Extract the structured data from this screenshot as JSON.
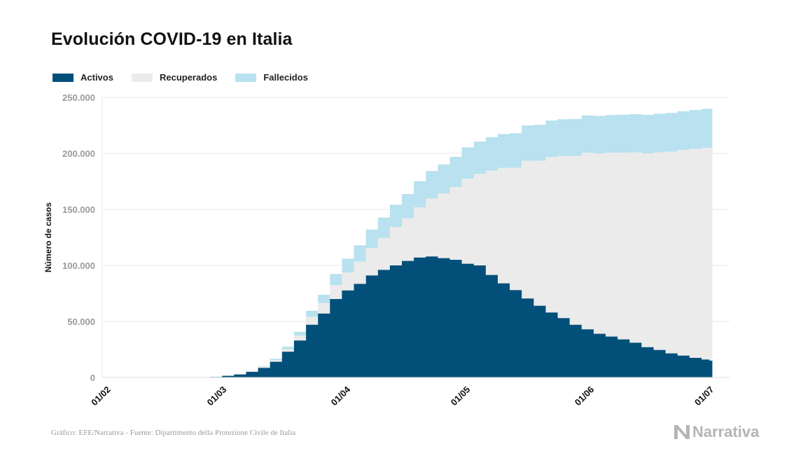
{
  "title": "Evolución COVID-19 en Italia",
  "colors": {
    "activos": "#02507a",
    "recuperados": "#ebebeb",
    "fallecidos": "#b9e1ef",
    "grid": "#e8e8e8",
    "tick_text": "#9a9a9a",
    "axis_text": "#111111"
  },
  "legend": [
    {
      "label": "Activos",
      "color": "#02507a"
    },
    {
      "label": "Recuperados",
      "color": "#ebebeb"
    },
    {
      "label": "Fallecidos",
      "color": "#b9e1ef"
    }
  ],
  "footer": {
    "source": "Gráfico: EFE/Narrativa - Fuente: Dipartimento della Protezione Civile de Italia",
    "brand": "Narrativa"
  },
  "chart_data": {
    "type": "area",
    "stacked": true,
    "title": "Evolución COVID-19 en Italia",
    "ylabel": "Número de casos",
    "xlabel": "",
    "ylim": [
      0,
      250000
    ],
    "yticks": [
      0,
      50000,
      100000,
      150000,
      200000,
      250000
    ],
    "ytick_labels": [
      "0",
      "50.000",
      "100.000",
      "150.000",
      "200.000",
      "250.000"
    ],
    "xticks": [
      "2020-02-01",
      "2020-03-01",
      "2020-04-01",
      "2020-05-01",
      "2020-06-01",
      "2020-07-01"
    ],
    "xtick_labels": [
      "01/02",
      "01/03",
      "01/04",
      "01/05",
      "01/06",
      "01/07"
    ],
    "xlim": [
      "2020-01-31",
      "2020-07-06"
    ],
    "grid": true,
    "legend_position": "top-left",
    "x": [
      "2020-02-24",
      "2020-02-27",
      "2020-03-01",
      "2020-03-04",
      "2020-03-07",
      "2020-03-10",
      "2020-03-13",
      "2020-03-16",
      "2020-03-19",
      "2020-03-22",
      "2020-03-25",
      "2020-03-28",
      "2020-03-31",
      "2020-04-03",
      "2020-04-06",
      "2020-04-09",
      "2020-04-12",
      "2020-04-15",
      "2020-04-18",
      "2020-04-21",
      "2020-04-24",
      "2020-04-27",
      "2020-04-30",
      "2020-05-03",
      "2020-05-06",
      "2020-05-09",
      "2020-05-12",
      "2020-05-15",
      "2020-05-18",
      "2020-05-21",
      "2020-05-24",
      "2020-05-27",
      "2020-05-30",
      "2020-06-02",
      "2020-06-05",
      "2020-06-08",
      "2020-06-11",
      "2020-06-14",
      "2020-06-17",
      "2020-06-20",
      "2020-06-23",
      "2020-06-26",
      "2020-06-29",
      "2020-07-01"
    ],
    "series": [
      {
        "name": "Activos",
        "values": [
          200,
          500,
          1500,
          2700,
          5000,
          8500,
          14000,
          23000,
          33000,
          47000,
          57000,
          70000,
          77600,
          83500,
          91000,
          96000,
          100000,
          104000,
          107000,
          108000,
          106500,
          105000,
          101500,
          100000,
          91500,
          84000,
          78000,
          70500,
          64000,
          58000,
          53000,
          47000,
          43000,
          39000,
          36500,
          34000,
          31000,
          27000,
          24500,
          21500,
          19500,
          17500,
          16000,
          15000
        ]
      },
      {
        "name": "Recuperados",
        "values": [
          0,
          50,
          100,
          400,
          600,
          1000,
          1500,
          2300,
          4400,
          7000,
          9300,
          12400,
          16000,
          19800,
          24400,
          28500,
          34200,
          38100,
          44900,
          51600,
          57600,
          64900,
          75900,
          81700,
          93200,
          103000,
          109000,
          122800,
          129400,
          138800,
          144700,
          150600,
          157500,
          160900,
          164000,
          166600,
          169900,
          173000,
          176400,
          180000,
          183500,
          186500,
          188900,
          190000
        ]
      },
      {
        "name": "Fallecidos",
        "values": [
          7,
          17,
          34,
          107,
          233,
          631,
          1266,
          2158,
          3405,
          5476,
          7503,
          10023,
          12428,
          14681,
          16523,
          18279,
          19899,
          21645,
          23227,
          24648,
          25969,
          26977,
          27967,
          28884,
          29684,
          30201,
          30911,
          31610,
          32007,
          32486,
          32785,
          33072,
          33340,
          33530,
          33689,
          33899,
          34114,
          34345,
          34448,
          34610,
          34675,
          34744,
          34767,
          34788
        ]
      }
    ]
  }
}
